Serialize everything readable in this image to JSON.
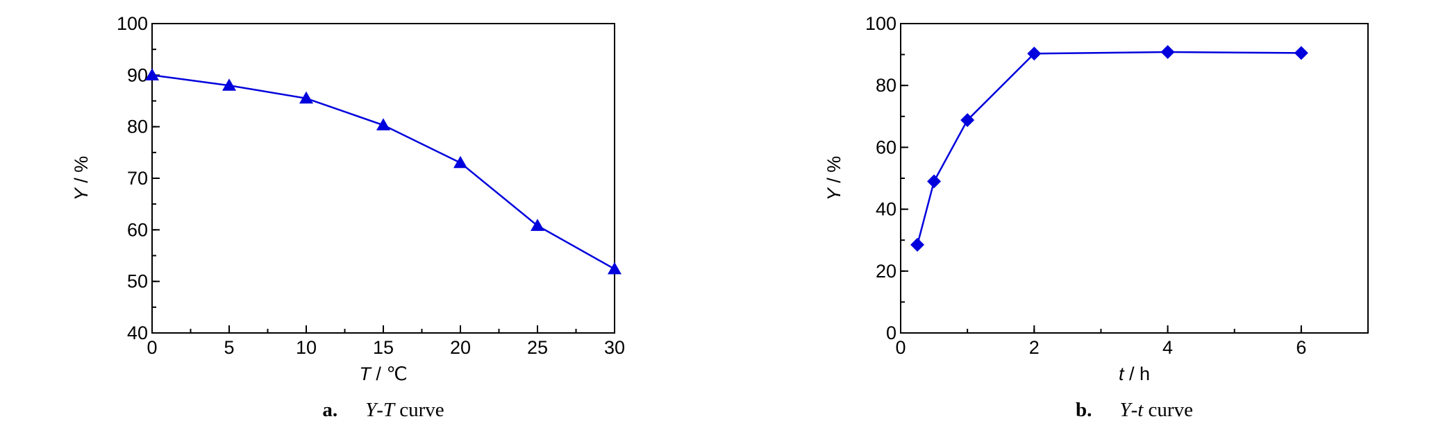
{
  "chart_data": [
    {
      "type": "line",
      "x": [
        0,
        5,
        10,
        15,
        20,
        25,
        30
      ],
      "values": [
        90,
        88,
        85.5,
        80.3,
        73,
        60.8,
        52.4
      ],
      "color": "#0000dd",
      "marker": "triangle",
      "xlim": [
        0,
        30
      ],
      "xticks": [
        0,
        5,
        10,
        15,
        20,
        25,
        30
      ],
      "ylim": [
        40,
        100
      ],
      "yticks": [
        40,
        50,
        60,
        70,
        80,
        90,
        100
      ],
      "xlabel": [
        "T",
        " / ℃"
      ],
      "ylabel": [
        "Y",
        " / %"
      ],
      "caption": {
        "label": "a.",
        "parts": [
          "Y",
          "-",
          "T",
          " curve"
        ]
      }
    },
    {
      "type": "line",
      "x": [
        0.25,
        0.5,
        1,
        2,
        4,
        6
      ],
      "values": [
        28.5,
        49,
        68.8,
        90.3,
        90.8,
        90.5
      ],
      "color": "#0000dd",
      "marker": "diamond",
      "xlim": [
        0,
        7
      ],
      "xticks": [
        0,
        2,
        4,
        6
      ],
      "ylim": [
        0,
        100
      ],
      "yticks": [
        0,
        20,
        40,
        60,
        80,
        100
      ],
      "xlabel": [
        "t",
        " / h"
      ],
      "ylabel": [
        "Y",
        " / %"
      ],
      "caption": {
        "label": "b.",
        "parts": [
          "Y",
          "-",
          "t",
          " curve"
        ]
      }
    }
  ]
}
